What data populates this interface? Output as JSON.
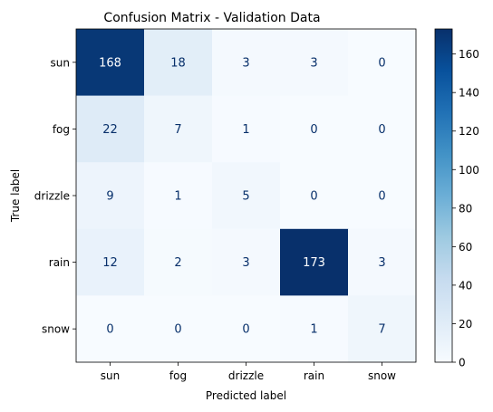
{
  "chart_data": {
    "type": "heatmap",
    "title": "Confusion Matrix - Validation Data",
    "xlabel": "Predicted label",
    "ylabel": "True label",
    "x_categories": [
      "sun",
      "fog",
      "drizzle",
      "rain",
      "snow"
    ],
    "y_categories": [
      "sun",
      "fog",
      "drizzle",
      "rain",
      "snow"
    ],
    "values": [
      [
        168,
        18,
        3,
        3,
        0
      ],
      [
        22,
        7,
        1,
        0,
        0
      ],
      [
        9,
        1,
        5,
        0,
        0
      ],
      [
        12,
        2,
        3,
        173,
        3
      ],
      [
        0,
        0,
        0,
        1,
        7
      ]
    ],
    "colormap": "Blues",
    "colorbar_range": [
      0,
      173
    ],
    "colorbar_ticks": [
      0,
      20,
      40,
      60,
      80,
      100,
      120,
      140,
      160
    ],
    "grid": false
  }
}
